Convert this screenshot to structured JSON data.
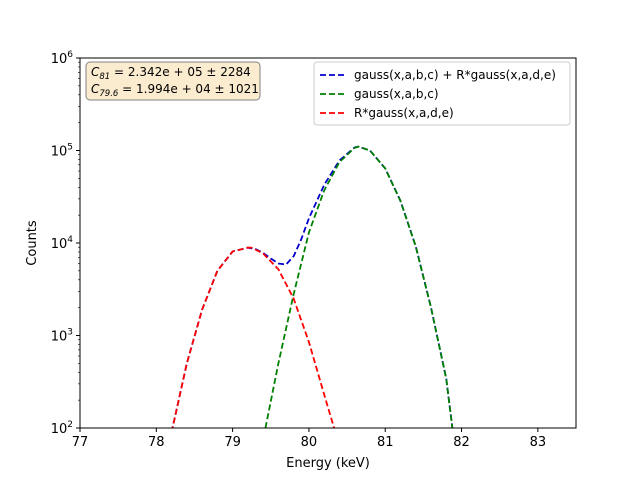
{
  "chart_data": {
    "type": "line",
    "xlabel": "Energy (keV)",
    "ylabel": "Counts",
    "xlim": [
      77,
      83.5
    ],
    "ylim": [
      100,
      1000000
    ],
    "yscale": "log",
    "xticks": [
      "77",
      "78",
      "79",
      "80",
      "81",
      "82",
      "83"
    ],
    "yticks": [
      {
        "base": "10",
        "exp": "2"
      },
      {
        "base": "10",
        "exp": "3"
      },
      {
        "base": "10",
        "exp": "4"
      },
      {
        "base": "10",
        "exp": "5"
      },
      {
        "base": "10",
        "exp": "6"
      }
    ],
    "grid": false,
    "legend_position": "top-right",
    "series": [
      {
        "name": "gauss(x,a,b,c) + R*gauss(x,a,d,e)",
        "color": "#0000cc",
        "style": "dashed",
        "x": [
          78.2,
          78.4,
          78.6,
          78.8,
          79.0,
          79.2,
          79.3,
          79.4,
          79.5,
          79.6,
          79.7,
          79.8,
          79.9,
          80.0,
          80.2,
          80.4,
          80.6,
          80.65,
          80.8,
          81.0,
          81.2,
          81.4,
          81.6,
          81.8,
          81.88
        ],
        "y": [
          90,
          500,
          1900,
          5000,
          8100,
          8900,
          8600,
          7800,
          6800,
          6000,
          5850,
          7200,
          11000,
          18500,
          42500,
          78000,
          108000,
          110000,
          100000,
          64000,
          28500,
          9200,
          2000,
          340,
          100
        ]
      },
      {
        "name": "gauss(x,a,b,c)",
        "color": "#008000",
        "style": "dashed",
        "x": [
          79.43,
          79.6,
          79.8,
          80.0,
          80.2,
          80.4,
          80.6,
          80.65,
          80.8,
          81.0,
          81.2,
          81.4,
          81.6,
          81.8,
          81.88
        ],
        "y": [
          100,
          500,
          2800,
          13000,
          37000,
          75000,
          107000,
          110000,
          100000,
          64000,
          28500,
          9200,
          2000,
          340,
          100
        ]
      },
      {
        "name": "R*gauss(x,a,d,e)",
        "color": "#ff0000",
        "style": "dashed",
        "x": [
          78.2,
          78.4,
          78.6,
          78.8,
          79.0,
          79.2,
          79.25,
          79.4,
          79.6,
          79.8,
          80.0,
          80.2,
          80.33
        ],
        "y": [
          90,
          500,
          1900,
          5000,
          8100,
          8900,
          8900,
          7700,
          5200,
          2500,
          850,
          230,
          100
        ]
      }
    ]
  },
  "annotation": {
    "line1": {
      "sym": "C",
      "sub": "81",
      "rest": " = 2.342e + 05 ± 2284"
    },
    "line2": {
      "sym": "C",
      "sub": "79.6",
      "rest": " = 1.994e + 04 ± 1021"
    },
    "bg_color": "#fbecd0",
    "border_color": "#808080"
  }
}
